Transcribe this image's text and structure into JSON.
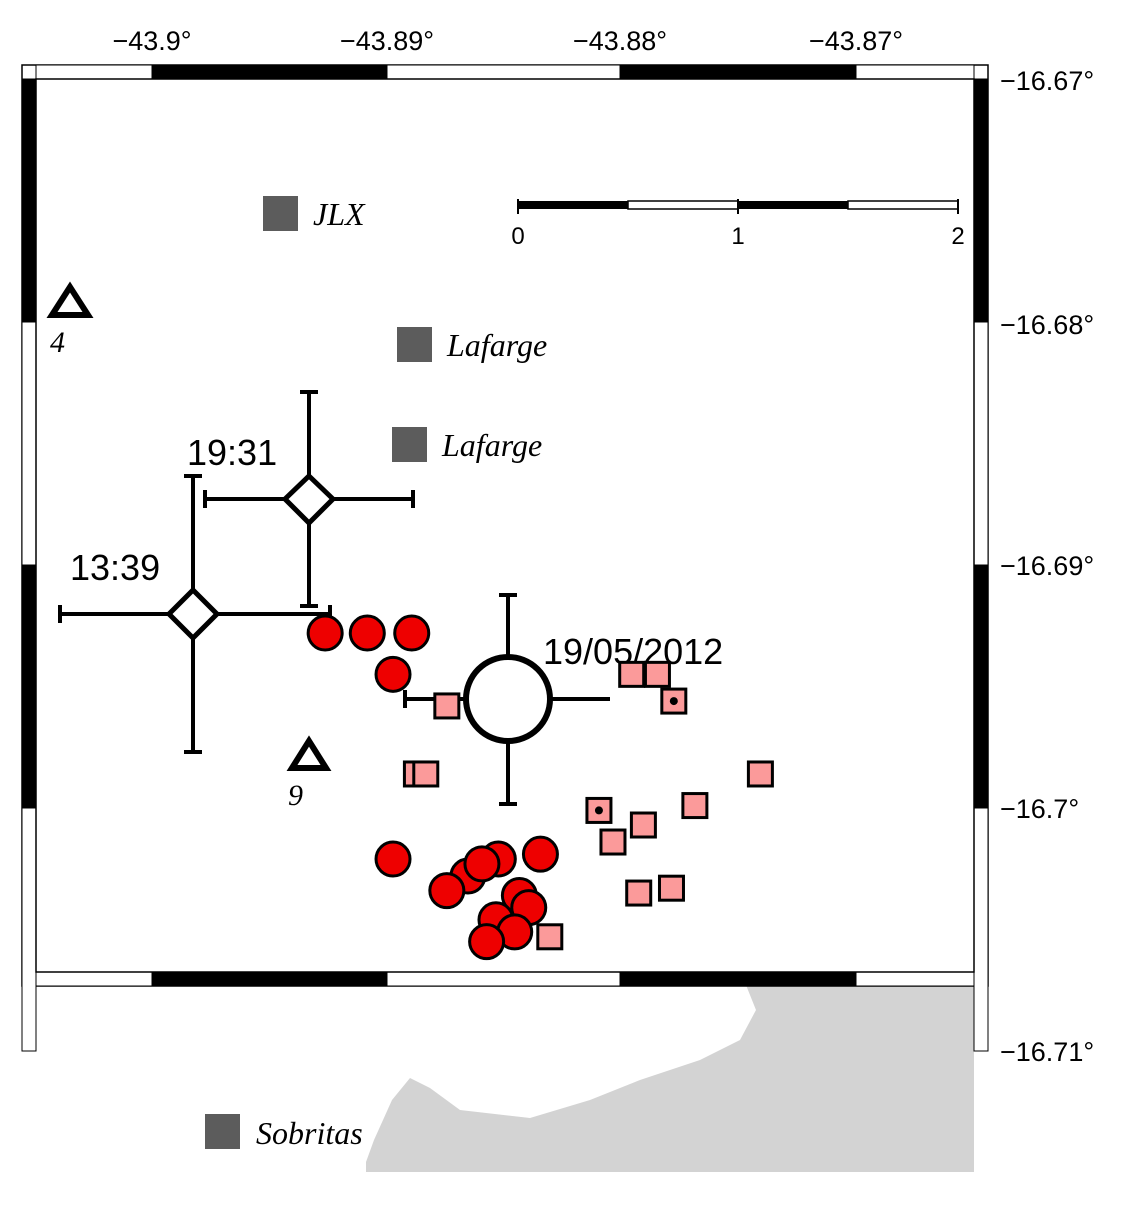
{
  "map": {
    "colors": {
      "land": "#ddfcdd",
      "gray_area": "#d3d3d3",
      "frame_dark": "#000000",
      "frame_light": "#ffffff",
      "event_red": "#ee0000",
      "event_pink": "#fb9a9a",
      "site_gray": "#5c5c5c"
    },
    "lon_ticks": [
      "−43.9°",
      "−43.89°",
      "−43.88°",
      "−43.87°"
    ],
    "lat_ticks": [
      "−16.67°",
      "−16.68°",
      "−16.69°",
      "−16.7°",
      "−16.71°"
    ],
    "scale_bar": {
      "labels": [
        "0",
        "1",
        "2"
      ]
    },
    "sites": [
      {
        "name": "JLX"
      },
      {
        "name": "Lafarge"
      },
      {
        "name": "Lafarge"
      },
      {
        "name": "Sobritas"
      }
    ],
    "stations": [
      {
        "name": "4"
      },
      {
        "name": "9"
      }
    ],
    "main_event": {
      "label": "19/05/2012"
    },
    "other_events": [
      {
        "label": "19:31"
      },
      {
        "label": "13:39"
      }
    ],
    "red_events": [
      {
        "lon": -43.8926,
        "lat": -16.6928
      },
      {
        "lon": -43.8908,
        "lat": -16.6928
      },
      {
        "lon": -43.8889,
        "lat": -16.6928
      },
      {
        "lon": -43.8897,
        "lat": -16.6945
      },
      {
        "lon": -43.8897,
        "lat": -16.7021
      },
      {
        "lon": -43.8865,
        "lat": -16.7028
      },
      {
        "lon": -43.8852,
        "lat": -16.7021
      },
      {
        "lon": -43.8834,
        "lat": -16.7019
      },
      {
        "lon": -43.8859,
        "lat": -16.7023
      },
      {
        "lon": -43.8874,
        "lat": -16.7034
      },
      {
        "lon": -43.8843,
        "lat": -16.7036
      },
      {
        "lon": -43.8839,
        "lat": -16.7041
      },
      {
        "lon": -43.8853,
        "lat": -16.7046
      },
      {
        "lon": -43.8845,
        "lat": -16.7051
      },
      {
        "lon": -43.8857,
        "lat": -16.7055
      }
    ],
    "pink_events": [
      {
        "lon": -43.8795,
        "lat": -16.6945,
        "dot": false
      },
      {
        "lon": -43.8784,
        "lat": -16.6945,
        "dot": false
      },
      {
        "lon": -43.8777,
        "lat": -16.6956,
        "dot": true
      },
      {
        "lon": -43.8874,
        "lat": -16.6958,
        "dot": false
      },
      {
        "lon": -43.8887,
        "lat": -16.6986,
        "dot": false
      },
      {
        "lon": -43.8883,
        "lat": -16.6986,
        "dot": false
      },
      {
        "lon": -43.8809,
        "lat": -16.7001,
        "dot": true
      },
      {
        "lon": -43.879,
        "lat": -16.7007,
        "dot": false
      },
      {
        "lon": -43.8803,
        "lat": -16.7014,
        "dot": false
      },
      {
        "lon": -43.8768,
        "lat": -16.6999,
        "dot": false
      },
      {
        "lon": -43.874,
        "lat": -16.6986,
        "dot": false
      },
      {
        "lon": -43.8792,
        "lat": -16.7035,
        "dot": false
      },
      {
        "lon": -43.8778,
        "lat": -16.7033,
        "dot": false
      },
      {
        "lon": -43.883,
        "lat": -16.7053,
        "dot": false
      }
    ]
  }
}
